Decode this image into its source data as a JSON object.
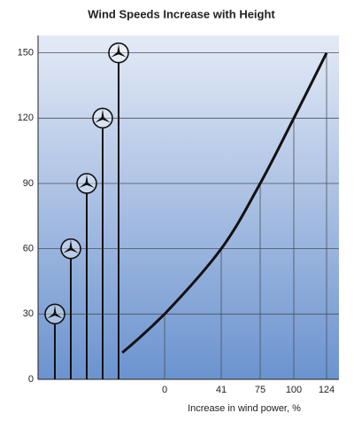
{
  "chart_data": {
    "type": "line",
    "title": "Wind Speeds Increase with Height",
    "x_label": "Increase in wind power, %",
    "categories": [
      "0",
      "41",
      "75",
      "100",
      "124"
    ],
    "values": [
      30,
      60,
      90,
      120,
      150
    ],
    "color": "#111111",
    "ylim": [
      0,
      158
    ],
    "yticks": [
      0,
      30,
      60,
      90,
      120,
      150
    ],
    "grid": true
  }
}
